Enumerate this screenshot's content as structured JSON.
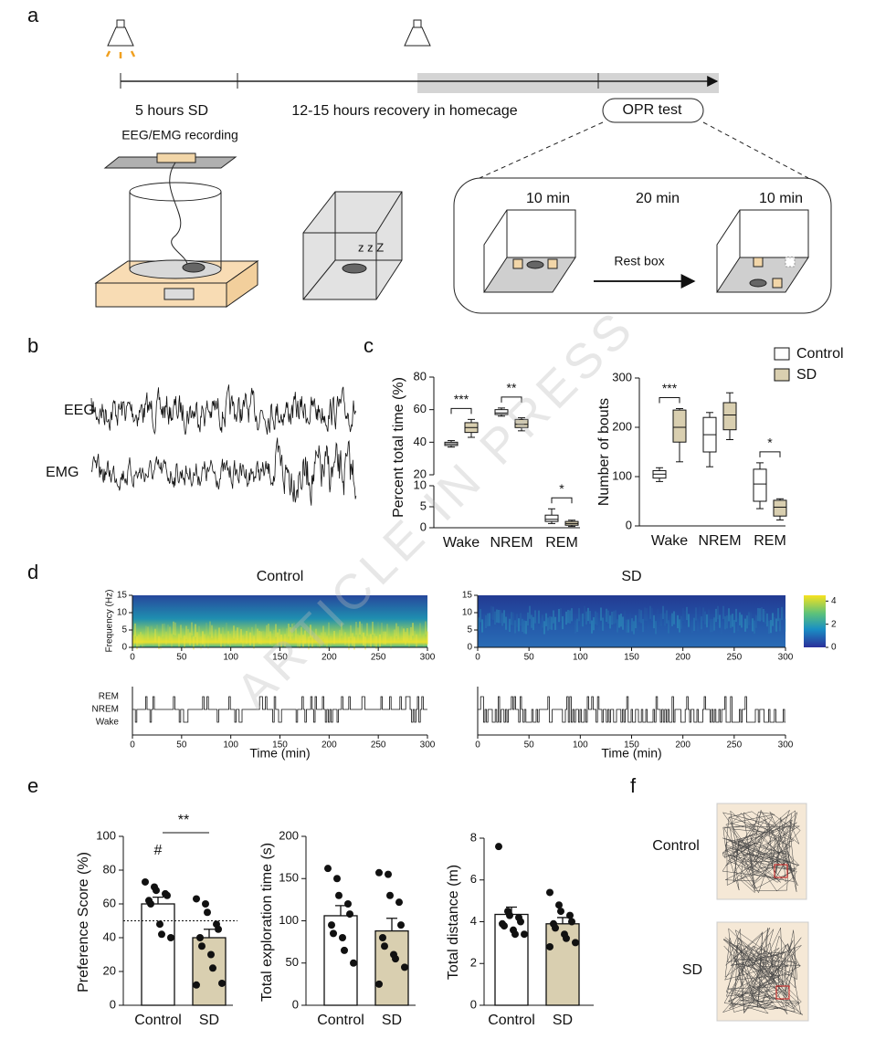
{
  "panel_labels": [
    "a",
    "b",
    "c",
    "d",
    "e",
    "f"
  ],
  "schematic": {
    "sd_label": "5 hours SD",
    "recovery_label": "12-15 hours recovery in homecage",
    "recording_label": "EEG/EMG recording",
    "test_label": "OPR test",
    "phase_1": "10 min",
    "phase_2": "20 min",
    "phase_3": "10 min",
    "rest_label": "Rest box"
  },
  "traces": {
    "eeg_label": "EEG",
    "emg_label": "EMG"
  },
  "watermark": "ARTICLE IN PRESS",
  "trajectories": {
    "labels": [
      "Control",
      "SD"
    ]
  },
  "chart_data": [
    {
      "type": "box",
      "ylabel": "Percent total time (%)",
      "categories": [
        "Wake",
        "NREM",
        "REM"
      ],
      "ylim_upper": [
        20,
        80
      ],
      "yticks_upper": [
        20,
        40,
        60,
        80
      ],
      "ylim_lower": [
        0,
        10
      ],
      "yticks_lower": [
        0,
        5,
        10
      ],
      "significance": [
        "***",
        "**",
        "*"
      ],
      "series": [
        {
          "color": "#ffffff",
          "min": [
            37,
            56,
            1
          ],
          "q1": [
            38,
            57,
            1.5
          ],
          "median": [
            39,
            58,
            2
          ],
          "q3": [
            40,
            60,
            3
          ],
          "max": [
            41,
            61,
            4.5
          ]
        },
        {
          "color": "#d9cfb0",
          "min": [
            43,
            47,
            0.3
          ],
          "q1": [
            46,
            49,
            0.6
          ],
          "median": [
            49,
            51,
            1
          ],
          "q3": [
            52,
            54,
            1.5
          ],
          "max": [
            54,
            55,
            1.8
          ]
        }
      ]
    },
    {
      "type": "box",
      "ylabel": "Number of bouts",
      "categories": [
        "Wake",
        "NREM",
        "REM"
      ],
      "ylim": [
        0,
        300
      ],
      "yticks": [
        0,
        100,
        200,
        300
      ],
      "significance": [
        "***",
        null,
        "*"
      ],
      "series": [
        {
          "name": "Control",
          "color": "#ffffff",
          "min": [
            90,
            120,
            35
          ],
          "q1": [
            97,
            150,
            50
          ],
          "median": [
            105,
            185,
            85
          ],
          "q3": [
            112,
            220,
            115
          ],
          "max": [
            118,
            230,
            128
          ]
        },
        {
          "name": "SD",
          "color": "#d9cfb0",
          "min": [
            130,
            175,
            12
          ],
          "q1": [
            170,
            195,
            20
          ],
          "median": [
            200,
            225,
            38
          ],
          "q3": [
            235,
            250,
            52
          ],
          "max": [
            238,
            270,
            55
          ]
        }
      ]
    },
    {
      "type": "spectrogram",
      "title": "Control",
      "ylabel": "Frequency (Hz)",
      "xlim": [
        0,
        300
      ],
      "xticks": [
        0,
        50,
        100,
        150,
        200,
        250,
        300
      ],
      "ylim": [
        0,
        15
      ],
      "yticks": [
        0,
        5,
        10,
        15
      ]
    },
    {
      "type": "spectrogram",
      "title": "SD",
      "xlim": [
        0,
        300
      ],
      "xticks": [
        0,
        50,
        100,
        150,
        200,
        250,
        300
      ],
      "ylim": [
        0,
        15
      ],
      "yticks": [
        0,
        5,
        10,
        15
      ],
      "clim": [
        0,
        4.5
      ],
      "colorbar_ticks": [
        0,
        2,
        4
      ]
    },
    {
      "type": "hypnogram",
      "xlabel": "Time (min)",
      "states": [
        "REM",
        "NREM",
        "Wake"
      ],
      "xlim": [
        0,
        300
      ],
      "xticks": [
        0,
        50,
        100,
        150,
        200,
        250,
        300
      ]
    },
    {
      "type": "hypnogram",
      "xlabel": "Time (min)",
      "xlim": [
        0,
        300
      ],
      "xticks": [
        0,
        50,
        100,
        150,
        200,
        250,
        300
      ]
    },
    {
      "type": "bar",
      "ylabel": "Preference Score (%)",
      "categories": [
        "Control",
        "SD"
      ],
      "values": [
        60,
        40
      ],
      "errors": [
        4,
        5
      ],
      "points": [
        [
          73,
          70,
          68,
          66,
          65,
          62,
          60,
          48,
          42,
          40
        ],
        [
          63,
          60,
          55,
          48,
          45,
          40,
          35,
          30,
          22,
          13,
          12
        ]
      ],
      "colors": [
        "#ffffff",
        "#d9cfb0"
      ],
      "ylim": [
        0,
        100
      ],
      "yticks": [
        0,
        20,
        40,
        60,
        80,
        100
      ],
      "reference_line": 50,
      "significance": "**",
      "marker": "#"
    },
    {
      "type": "bar",
      "ylabel": "Total exploration time (s)",
      "categories": [
        "Control",
        "SD"
      ],
      "values": [
        106,
        88
      ],
      "errors": [
        12,
        15
      ],
      "points": [
        [
          162,
          150,
          130,
          120,
          108,
          95,
          85,
          80,
          65,
          50
        ],
        [
          157,
          155,
          130,
          122,
          95,
          80,
          70,
          60,
          55,
          45,
          25
        ]
      ],
      "colors": [
        "#ffffff",
        "#d9cfb0"
      ],
      "ylim": [
        0,
        200
      ],
      "yticks": [
        0,
        50,
        100,
        150,
        200
      ]
    },
    {
      "type": "bar",
      "ylabel": "Total distance (m)",
      "categories": [
        "Control",
        "SD"
      ],
      "values": [
        4.35,
        3.9
      ],
      "errors": [
        0.35,
        0.3
      ],
      "points": [
        [
          7.6,
          4.5,
          4.3,
          4.2,
          4.0,
          3.9,
          3.8,
          3.6,
          3.4,
          3.4
        ],
        [
          5.4,
          4.8,
          4.5,
          4.3,
          4.0,
          3.9,
          3.7,
          3.4,
          3.2,
          3.0,
          2.8
        ]
      ],
      "colors": [
        "#ffffff",
        "#d9cfb0"
      ],
      "ylim": [
        0,
        8
      ],
      "yticks": [
        0,
        2,
        4,
        6,
        8
      ]
    }
  ]
}
